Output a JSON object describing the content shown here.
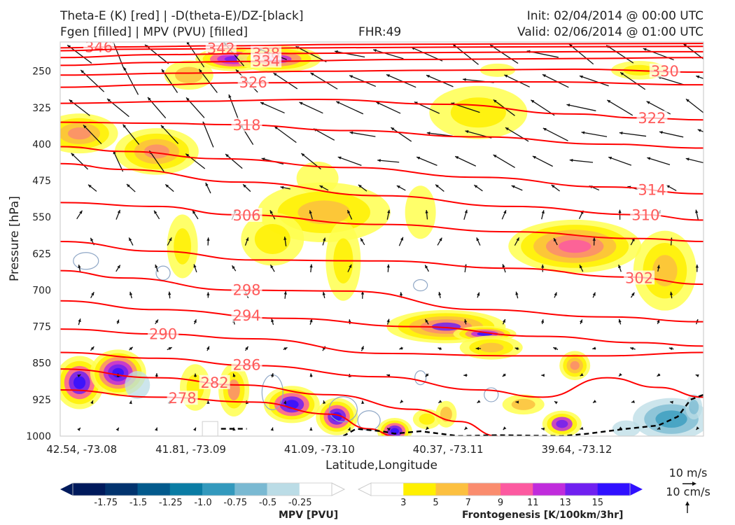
{
  "header": {
    "line1_left": "Theta-E (K) [red] | -D(theta-E)/DZ-[black]",
    "line2_left": "Fgen [filled] | MPV (PVU) [filled]",
    "fhr": "FHR:49",
    "init": "Init: 02/04/2014 @ 00:00 UTC",
    "valid": "Valid: 02/06/2014 @ 01:00 UTC"
  },
  "chart_data": {
    "type": "cross-section",
    "xlabel": "Latitude,Longitude",
    "ylabel": "Pressure [hPa]",
    "x_ticks": [
      "42.54, -73.08",
      "41.81, -73.09",
      "41.09, -73.10",
      "40.37, -73.11",
      "39.64, -73.12"
    ],
    "y_ticks": [
      250,
      325,
      400,
      475,
      550,
      625,
      700,
      775,
      850,
      925,
      1000
    ],
    "ylim": [
      190,
      1000
    ],
    "y_inverted": true,
    "theta_e_labels": [
      "346",
      "342",
      "338",
      "334",
      "330",
      "326",
      "322",
      "318",
      "314",
      "310",
      "306",
      "302",
      "298",
      "294",
      "290",
      "286",
      "282",
      "278"
    ],
    "theta_e_contours": [
      {
        "label": "346",
        "points": [
          [
            0.0,
            202
          ],
          [
            0.1,
            200
          ],
          [
            0.25,
            198
          ],
          [
            0.45,
            195
          ],
          [
            0.7,
            194
          ],
          [
            1.0,
            193
          ]
        ]
      },
      {
        "label": "342",
        "points": [
          [
            0.0,
            208
          ],
          [
            0.1,
            205
          ],
          [
            0.22,
            204
          ],
          [
            0.4,
            202
          ],
          [
            0.7,
            200
          ],
          [
            1.0,
            199
          ]
        ]
      },
      {
        "label": "338",
        "points": [
          [
            0.0,
            222
          ],
          [
            0.15,
            216
          ],
          [
            0.3,
            214
          ],
          [
            0.55,
            212
          ],
          [
            0.8,
            210
          ],
          [
            1.0,
            210
          ]
        ]
      },
      {
        "label": "334",
        "points": [
          [
            0.0,
            238
          ],
          [
            0.15,
            232
          ],
          [
            0.3,
            230
          ],
          [
            0.55,
            226
          ],
          [
            0.8,
            224
          ],
          [
            1.0,
            222
          ]
        ]
      },
      {
        "label": "330",
        "points": [
          [
            0.0,
            258
          ],
          [
            0.2,
            254
          ],
          [
            0.4,
            250
          ],
          [
            0.6,
            248
          ],
          [
            0.8,
            246
          ],
          [
            1.0,
            252
          ]
        ]
      },
      {
        "label": "326",
        "points": [
          [
            0.0,
            283
          ],
          [
            0.15,
            278
          ],
          [
            0.27,
            274
          ],
          [
            0.5,
            272
          ],
          [
            0.75,
            272
          ],
          [
            1.0,
            278
          ]
        ]
      },
      {
        "label": "322",
        "points": [
          [
            0.0,
            316
          ],
          [
            0.2,
            312
          ],
          [
            0.4,
            308
          ],
          [
            0.6,
            318
          ],
          [
            0.8,
            338
          ],
          [
            0.9,
            346
          ],
          [
            1.0,
            350
          ]
        ]
      },
      {
        "label": "318",
        "points": [
          [
            0.0,
            355
          ],
          [
            0.15,
            357
          ],
          [
            0.27,
            360
          ],
          [
            0.45,
            372
          ],
          [
            0.65,
            385
          ],
          [
            0.85,
            400
          ],
          [
            1.0,
            408
          ]
        ]
      },
      {
        "label": "314",
        "points": [
          [
            0.0,
            405
          ],
          [
            0.1,
            415
          ],
          [
            0.25,
            430
          ],
          [
            0.45,
            448
          ],
          [
            0.65,
            468
          ],
          [
            0.85,
            488
          ],
          [
            1.0,
            502
          ]
        ]
      },
      {
        "label": "310",
        "points": [
          [
            0.0,
            440
          ],
          [
            0.1,
            452
          ],
          [
            0.28,
            478
          ],
          [
            0.5,
            506
          ],
          [
            0.7,
            528
          ],
          [
            0.9,
            545
          ],
          [
            1.0,
            556
          ]
        ]
      },
      {
        "label": "306",
        "points": [
          [
            0.0,
            520
          ],
          [
            0.15,
            528
          ],
          [
            0.27,
            545
          ],
          [
            0.5,
            565
          ],
          [
            0.7,
            580
          ],
          [
            0.9,
            594
          ],
          [
            1.0,
            600
          ]
        ]
      },
      {
        "label": "302",
        "points": [
          [
            0.0,
            600
          ],
          [
            0.15,
            620
          ],
          [
            0.3,
            638
          ],
          [
            0.5,
            640
          ],
          [
            0.7,
            655
          ],
          [
            0.88,
            673
          ],
          [
            1.0,
            688
          ]
        ]
      },
      {
        "label": "298",
        "points": [
          [
            0.0,
            660
          ],
          [
            0.1,
            675
          ],
          [
            0.27,
            700
          ],
          [
            0.45,
            702
          ],
          [
            0.65,
            740
          ],
          [
            0.85,
            755
          ],
          [
            1.0,
            765
          ]
        ]
      },
      {
        "label": "294",
        "points": [
          [
            0.0,
            722
          ],
          [
            0.15,
            740
          ],
          [
            0.35,
            758
          ],
          [
            0.55,
            775
          ],
          [
            0.75,
            795
          ],
          [
            0.9,
            808
          ],
          [
            1.0,
            815
          ]
        ]
      },
      {
        "label": "290",
        "points": [
          [
            0.0,
            780
          ],
          [
            0.15,
            790
          ],
          [
            0.3,
            800
          ],
          [
            0.5,
            830
          ],
          [
            0.7,
            835
          ],
          [
            0.85,
            835
          ],
          [
            1.0,
            828
          ]
        ]
      },
      {
        "label": "286",
        "points": [
          [
            0.0,
            828
          ],
          [
            0.15,
            840
          ],
          [
            0.3,
            855
          ],
          [
            0.5,
            878
          ],
          [
            0.65,
            905
          ],
          [
            0.75,
            920
          ],
          [
            0.85,
            880
          ],
          [
            0.93,
            900
          ],
          [
            1.0,
            920
          ]
        ]
      },
      {
        "label": "282",
        "points": [
          [
            0.0,
            862
          ],
          [
            0.15,
            880
          ],
          [
            0.28,
            895
          ],
          [
            0.42,
            915
          ],
          [
            0.55,
            945
          ],
          [
            0.62,
            970
          ],
          [
            0.68,
            1000
          ]
        ]
      },
      {
        "label": "278",
        "points": [
          [
            0.0,
            905
          ],
          [
            0.15,
            920
          ],
          [
            0.3,
            930
          ],
          [
            0.42,
            955
          ],
          [
            0.48,
            985
          ],
          [
            0.52,
            1000
          ]
        ]
      }
    ],
    "fgen_colorbar": {
      "label": "Frontogenesis [K/100km/3hr]",
      "ticks": [
        "3",
        "5",
        "7",
        "9",
        "11",
        "13",
        "15"
      ]
    },
    "mpv_colorbar": {
      "label": "MPV [PVU]",
      "ticks": [
        "-1.75",
        "-1.5",
        "-1.25",
        "-1.0",
        "-0.75",
        "-0.5",
        "-0.25"
      ]
    },
    "wind_reference": {
      "horizontal": "10 m/s",
      "vertical": "10 cm/s"
    }
  },
  "colors": {
    "fgen": [
      "#ffffff",
      "#ffff50",
      "#fff000",
      "#fcc040",
      "#fa8c6e",
      "#fc5aa0",
      "#c02cdc",
      "#7020f0",
      "#3010ff"
    ],
    "mpv": [
      "#001a5c",
      "#02336e",
      "#035a8c",
      "#0a7ca4",
      "#3399bd",
      "#7ab9d2",
      "#bbdce6",
      "#ffffff"
    ],
    "theta_e": "#ff0000",
    "theta_e_label": "#ff5a5a",
    "vectors": "#111111",
    "ground": "#000000"
  }
}
